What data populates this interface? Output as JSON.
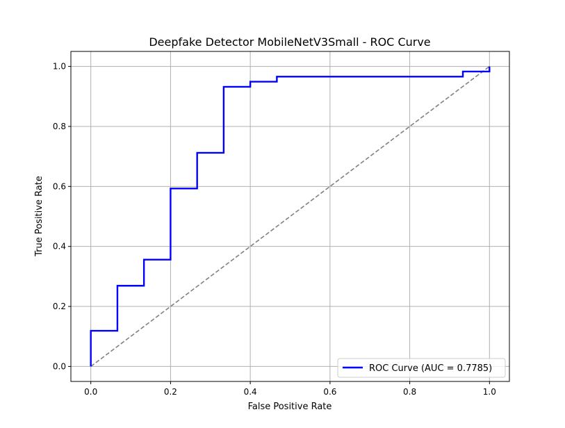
{
  "chart_data": {
    "type": "line",
    "title": "Deepfake Detector MobileNetV3Small - ROC Curve",
    "xlabel": "False Positive Rate",
    "ylabel": "True Positive Rate",
    "xlim": [
      -0.05,
      1.05
    ],
    "ylim": [
      -0.05,
      1.05
    ],
    "xticks": [
      "0.0",
      "0.2",
      "0.4",
      "0.6",
      "0.8",
      "1.0"
    ],
    "yticks": [
      "0.0",
      "0.2",
      "0.4",
      "0.6",
      "0.8",
      "1.0"
    ],
    "grid": true,
    "legend_position": "lower-right",
    "series": [
      {
        "name": "ROC Curve (AUC = 0.7785)",
        "color": "#0000ff",
        "style": "solid",
        "x": [
          0.0,
          0.0,
          0.0667,
          0.0667,
          0.1333,
          0.1333,
          0.2,
          0.2,
          0.2667,
          0.2667,
          0.3333,
          0.3333,
          0.4,
          0.4,
          0.4667,
          0.4667,
          0.9333,
          0.9333,
          1.0,
          1.0
        ],
        "y": [
          0.0,
          0.119,
          0.119,
          0.269,
          0.269,
          0.356,
          0.356,
          0.593,
          0.593,
          0.712,
          0.712,
          0.932,
          0.932,
          0.949,
          0.949,
          0.966,
          0.966,
          0.983,
          0.983,
          1.0
        ]
      },
      {
        "color": "#808080",
        "style": "dashed",
        "x": [
          0.0,
          1.0
        ],
        "y": [
          0.0,
          1.0
        ]
      }
    ]
  }
}
